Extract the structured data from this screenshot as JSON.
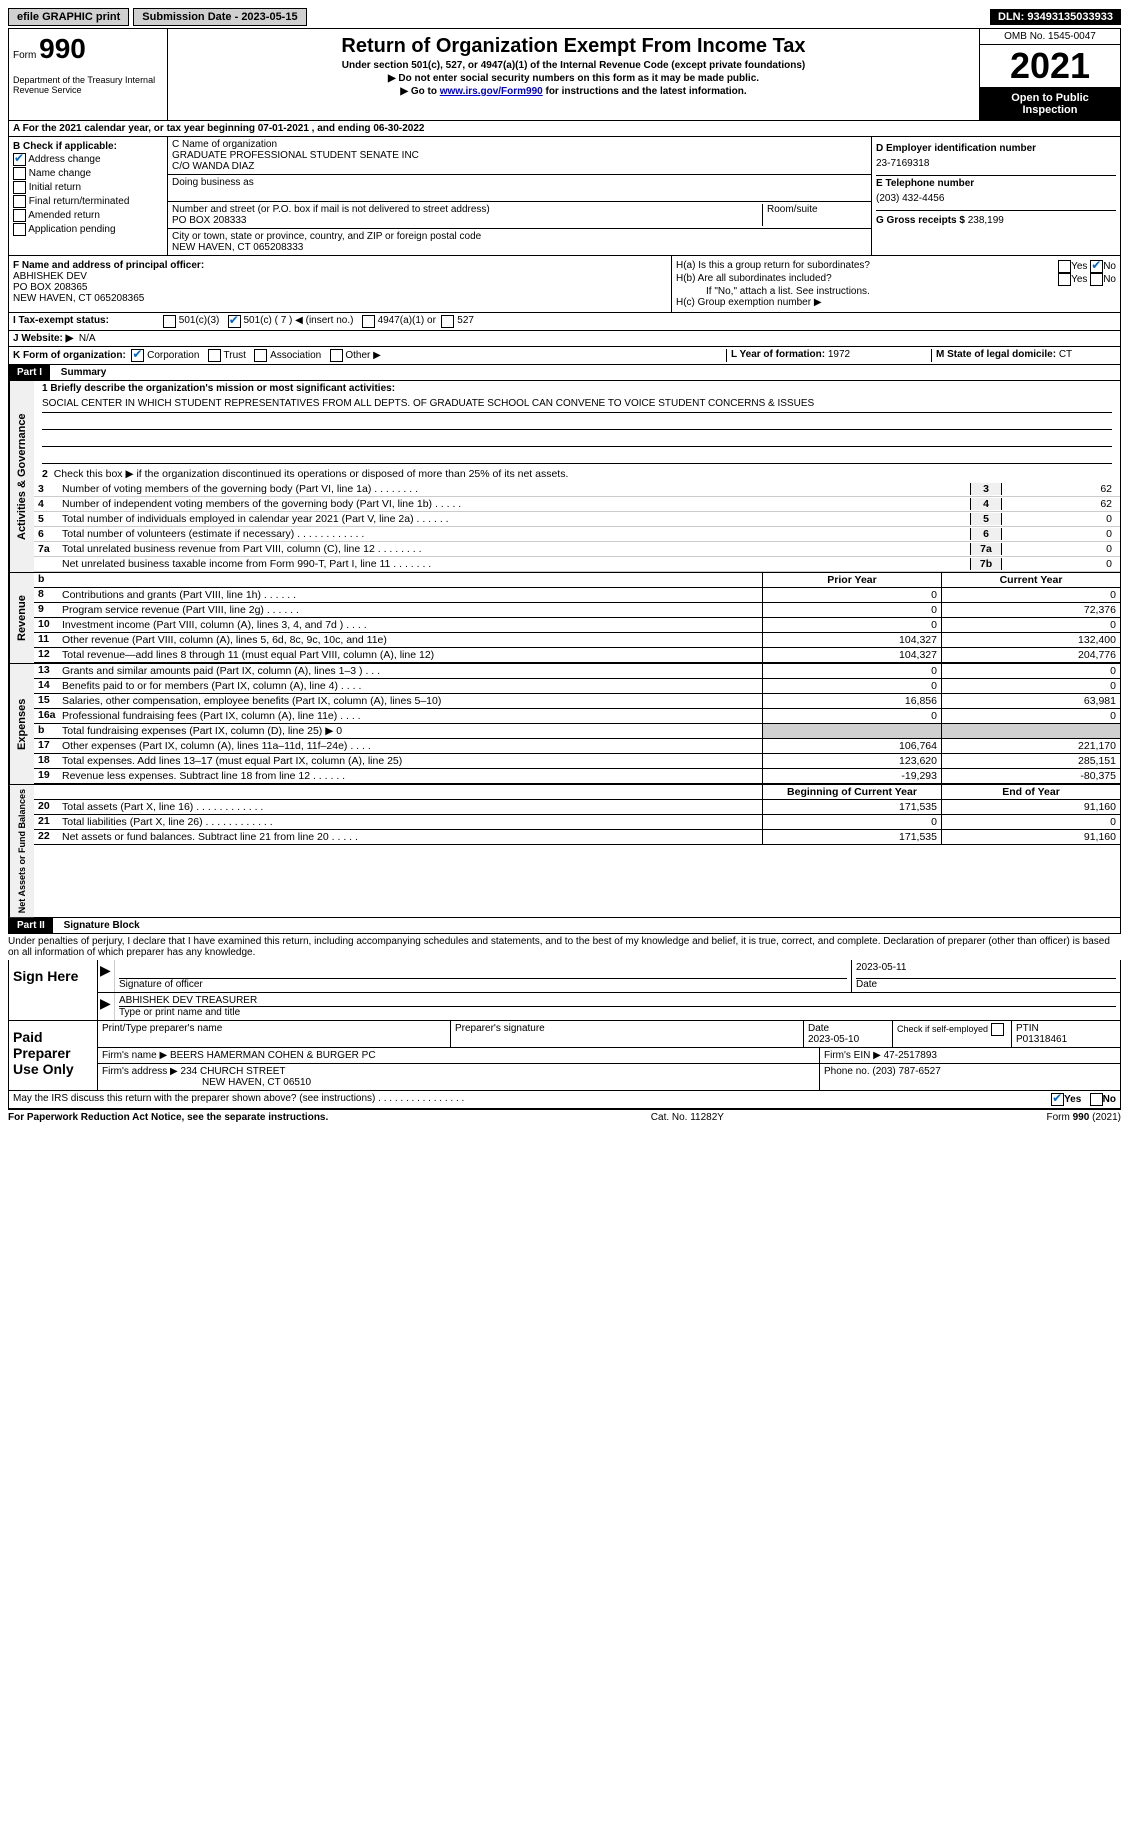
{
  "topbar": {
    "efile": "efile GRAPHIC print",
    "submission_label": "Submission Date - 2023-05-15",
    "dln": "DLN: 93493135033933"
  },
  "header": {
    "form_label": "Form",
    "form_number": "990",
    "dept": "Department of the Treasury Internal Revenue Service",
    "title": "Return of Organization Exempt From Income Tax",
    "subtitle1": "Under section 501(c), 527, or 4947(a)(1) of the Internal Revenue Code (except private foundations)",
    "subtitle2": "▶ Do not enter social security numbers on this form as it may be made public.",
    "subtitle3_pre": "▶ Go to ",
    "subtitle3_link": "www.irs.gov/Form990",
    "subtitle3_post": " for instructions and the latest information.",
    "omb": "OMB No. 1545-0047",
    "year": "2021",
    "open": "Open to Public Inspection"
  },
  "line_a": "A For the 2021 calendar year, or tax year beginning 07-01-2021   , and ending 06-30-2022",
  "box_b": {
    "label": "B Check if applicable:",
    "addr": "Address change",
    "name": "Name change",
    "initial": "Initial return",
    "final_ret": "Final return/terminated",
    "amended": "Amended return",
    "app": "Application pending"
  },
  "box_c": {
    "name_label": "C Name of organization",
    "name": "GRADUATE PROFESSIONAL STUDENT SENATE INC",
    "co": "C/O WANDA DIAZ",
    "dba_label": "Doing business as",
    "addr_label": "Number and street (or P.O. box if mail is not delivered to street address)",
    "room": "Room/suite",
    "addr": "PO BOX 208333",
    "city_label": "City or town, state or province, country, and ZIP or foreign postal code",
    "city": "NEW HAVEN, CT  065208333"
  },
  "box_d": {
    "ein_label": "D Employer identification number",
    "ein": "23-7169318",
    "tel_label": "E Telephone number",
    "tel": "(203) 432-4456",
    "gross_label": "G Gross receipts $",
    "gross": "238,199"
  },
  "box_f": {
    "label": "F Name and address of principal officer:",
    "name": "ABHISHEK DEV",
    "addr1": "PO BOX 208365",
    "addr2": "NEW HAVEN, CT  065208365"
  },
  "box_h": {
    "ha": "H(a)  Is this a group return for subordinates?",
    "hb": "H(b)  Are all subordinates included?",
    "hb_note": "If \"No,\" attach a list. See instructions.",
    "hc": "H(c)  Group exemption number ▶"
  },
  "tax_status": {
    "label": "I  Tax-exempt status:",
    "c3": "501(c)(3)",
    "c": "501(c) ( 7 ) ◀ (insert no.)",
    "a1": "4947(a)(1) or",
    "s527": "527"
  },
  "row_j": {
    "label": "J  Website: ▶",
    "val": "N/A"
  },
  "row_k": {
    "label": "K Form of organization:",
    "corp": "Corporation",
    "trust": "Trust",
    "assoc": "Association",
    "other": "Other ▶",
    "l_label": "L Year of formation:",
    "l_val": "1972",
    "m_label": "M State of legal domicile:",
    "m_val": "CT"
  },
  "part1": {
    "header": "Part I",
    "title": "Summary",
    "line1_label": "1  Briefly describe the organization's mission or most significant activities:",
    "line1_text": "SOCIAL CENTER IN WHICH STUDENT REPRESENTATIVES FROM ALL DEPTS. OF GRADUATE SCHOOL CAN CONVENE TO VOICE STUDENT CONCERNS & ISSUES",
    "line2": "Check this box ▶     if the organization discontinued its operations or disposed of more than 25% of its net assets.",
    "vert_act": "Activities & Governance",
    "vert_rev": "Revenue",
    "vert_exp": "Expenses",
    "vert_net": "Net Assets or Fund Balances",
    "lines_top": [
      {
        "n": "3",
        "t": "Number of voting members of the governing body (Part VI, line 1a)   .    .    .    .    .    .    .    .",
        "box": "3",
        "v": "62"
      },
      {
        "n": "4",
        "t": "Number of independent voting members of the governing body (Part VI, line 1b)   .    .    .    .    .",
        "box": "4",
        "v": "62"
      },
      {
        "n": "5",
        "t": "Total number of individuals employed in calendar year 2021 (Part V, line 2a)   .    .    .    .    .    .",
        "box": "5",
        "v": "0"
      },
      {
        "n": "6",
        "t": "Total number of volunteers (estimate if necessary)   .    .    .    .    .    .    .    .    .    .    .    .",
        "box": "6",
        "v": "0"
      },
      {
        "n": "7a",
        "t": "Total unrelated business revenue from Part VIII, column (C), line 12   .    .    .    .    .    .    .    .",
        "box": "7a",
        "v": "0"
      },
      {
        "n": "",
        "t": "Net unrelated business taxable income from Form 990-T, Part I, line 11   .    .    .    .    .    .    .",
        "box": "7b",
        "v": "0"
      }
    ],
    "prior_header": "Prior Year",
    "current_header": "Current Year",
    "rev_lines": [
      {
        "n": "8",
        "t": "Contributions and grants (Part VIII, line 1h)   .    .    .    .    .    .",
        "p": "0",
        "c": "0"
      },
      {
        "n": "9",
        "t": "Program service revenue (Part VIII, line 2g)   .    .    .    .    .    .",
        "p": "0",
        "c": "72,376"
      },
      {
        "n": "10",
        "t": "Investment income (Part VIII, column (A), lines 3, 4, and 7d )   .    .    .    .",
        "p": "0",
        "c": "0"
      },
      {
        "n": "11",
        "t": "Other revenue (Part VIII, column (A), lines 5, 6d, 8c, 9c, 10c, and 11e)",
        "p": "104,327",
        "c": "132,400"
      },
      {
        "n": "12",
        "t": "Total revenue—add lines 8 through 11 (must equal Part VIII, column (A), line 12)",
        "p": "104,327",
        "c": "204,776"
      }
    ],
    "exp_lines": [
      {
        "n": "13",
        "t": "Grants and similar amounts paid (Part IX, column (A), lines 1–3 )   .    .    .",
        "p": "0",
        "c": "0"
      },
      {
        "n": "14",
        "t": "Benefits paid to or for members (Part IX, column (A), line 4)   .    .    .    .",
        "p": "0",
        "c": "0"
      },
      {
        "n": "15",
        "t": "Salaries, other compensation, employee benefits (Part IX, column (A), lines 5–10)",
        "p": "16,856",
        "c": "63,981"
      },
      {
        "n": "16a",
        "t": "Professional fundraising fees (Part IX, column (A), line 11e)   .    .    .    .",
        "p": "0",
        "c": "0"
      },
      {
        "n": "b",
        "t": "Total fundraising expenses (Part IX, column (D), line 25) ▶ 0",
        "p": "shaded",
        "c": "shaded"
      },
      {
        "n": "17",
        "t": "Other expenses (Part IX, column (A), lines 11a–11d, 11f–24e)   .    .    .    .",
        "p": "106,764",
        "c": "221,170"
      },
      {
        "n": "18",
        "t": "Total expenses. Add lines 13–17 (must equal Part IX, column (A), line 25)",
        "p": "123,620",
        "c": "285,151"
      },
      {
        "n": "19",
        "t": "Revenue less expenses. Subtract line 18 from line 12   .    .    .    .    .    .",
        "p": "-19,293",
        "c": "-80,375"
      }
    ],
    "begin_header": "Beginning of Current Year",
    "end_header": "End of Year",
    "net_lines": [
      {
        "n": "20",
        "t": "Total assets (Part X, line 16)   .    .    .    .    .    .    .    .    .    .    .    .",
        "p": "171,535",
        "c": "91,160"
      },
      {
        "n": "21",
        "t": "Total liabilities (Part X, line 26)   .    .    .    .    .    .    .    .    .    .    .    .",
        "p": "0",
        "c": "0"
      },
      {
        "n": "22",
        "t": "Net assets or fund balances. Subtract line 21 from line 20   .    .    .    .    .",
        "p": "171,535",
        "c": "91,160"
      }
    ]
  },
  "part2": {
    "header": "Part II",
    "title": "Signature Block",
    "declaration": "Under penalties of perjury, I declare that I have examined this return, including accompanying schedules and statements, and to the best of my knowledge and belief, it is true, correct, and complete. Declaration of preparer (other than officer) is based on all information of which preparer has any knowledge.",
    "sign_here": "Sign Here",
    "sig_officer": "Signature of officer",
    "sig_date": "2023-05-11",
    "date_label": "Date",
    "officer_name": "ABHISHEK DEV TREASURER",
    "name_label": "Type or print name and title",
    "paid_prep": "Paid Preparer Use Only",
    "prep_name_label": "Print/Type preparer's name",
    "prep_sig_label": "Preparer's signature",
    "prep_date_label": "Date",
    "prep_date": "2023-05-10",
    "check_self": "Check       if self-employed",
    "ptin_label": "PTIN",
    "ptin": "P01318461",
    "firm_name_label": "Firm's name    ▶",
    "firm_name": "BEERS HAMERMAN COHEN & BURGER PC",
    "firm_ein_label": "Firm's EIN ▶",
    "firm_ein": "47-2517893",
    "firm_addr_label": "Firm's address ▶",
    "firm_addr1": "234 CHURCH STREET",
    "firm_addr2": "NEW HAVEN, CT  06510",
    "phone_label": "Phone no.",
    "phone": "(203) 787-6527",
    "discuss": "May the IRS discuss this return with the preparer shown above? (see instructions)   .    .    .    .    .    .    .    .    .    .    .    .    .    .    .    ."
  },
  "footer": {
    "left": "For Paperwork Reduction Act Notice, see the separate instructions.",
    "center": "Cat. No. 11282Y",
    "right": "Form 990 (2021)"
  },
  "yes": "Yes",
  "no": "No"
}
